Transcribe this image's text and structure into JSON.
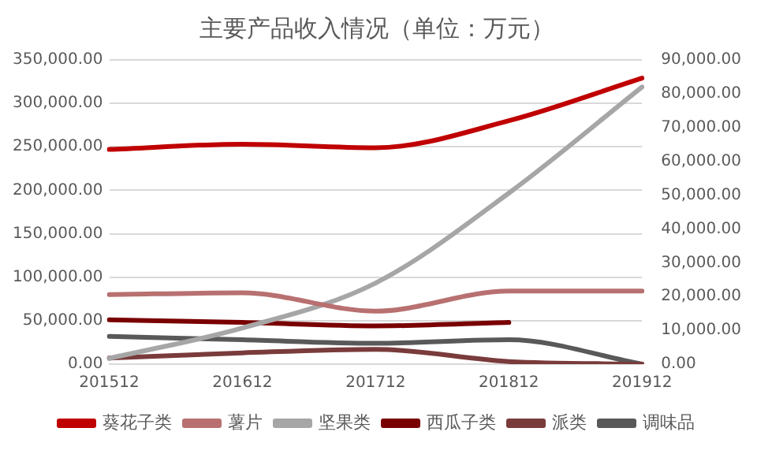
{
  "chart_data": {
    "type": "line",
    "title": "主要产品收入情况（单位：万元）",
    "categories": [
      "201512",
      "201612",
      "201712",
      "201812",
      "201912"
    ],
    "series": [
      {
        "name": "葵花子类",
        "color": "#c00000",
        "values": [
          247000,
          253000,
          249000,
          280000,
          329000
        ]
      },
      {
        "name": "薯片",
        "color": "#b87070",
        "values": [
          80000,
          82000,
          61000,
          84000,
          84000
        ]
      },
      {
        "name": "坚果类",
        "color": "#a6a6a6",
        "axis": "y2",
        "values": [
          1700,
          10700,
          24000,
          50600,
          82000
        ]
      },
      {
        "name": "西瓜子类",
        "color": "#7a0000",
        "values": [
          51000,
          48000,
          44000,
          48000,
          null
        ]
      },
      {
        "name": "派类",
        "color": "#7a3b3b",
        "values": [
          7000,
          13000,
          17000,
          3000,
          0
        ]
      },
      {
        "name": "调味品",
        "color": "#595959",
        "values": [
          32000,
          28000,
          24000,
          28000,
          0
        ]
      }
    ],
    "ylim": [
      0,
      350000
    ],
    "yticks": [
      {
        "value": 0,
        "label": "0.00"
      },
      {
        "value": 50000,
        "label": "50,000.00"
      },
      {
        "value": 100000,
        "label": "100,000.00"
      },
      {
        "value": 150000,
        "label": "150,000.00"
      },
      {
        "value": 200000,
        "label": "200,000.00"
      },
      {
        "value": 250000,
        "label": "250,000.00"
      },
      {
        "value": 300000,
        "label": "300,000.00"
      },
      {
        "value": 350000,
        "label": "350,000.00"
      }
    ],
    "y2lim": [
      0,
      90000
    ],
    "y2ticks": [
      {
        "value": 0,
        "label": "0.00"
      },
      {
        "value": 10000,
        "label": "10,000.00"
      },
      {
        "value": 20000,
        "label": "20,000.00"
      },
      {
        "value": 30000,
        "label": "30,000.00"
      },
      {
        "value": 40000,
        "label": "40,000.00"
      },
      {
        "value": 50000,
        "label": "50,000.00"
      },
      {
        "value": 60000,
        "label": "60,000.00"
      },
      {
        "value": 70000,
        "label": "70,000.00"
      },
      {
        "value": 80000,
        "label": "80,000.00"
      },
      {
        "value": 90000,
        "label": "90,000.00"
      }
    ],
    "grid": "y",
    "legend": "bottom",
    "marker": "none",
    "line_style": "solid"
  }
}
